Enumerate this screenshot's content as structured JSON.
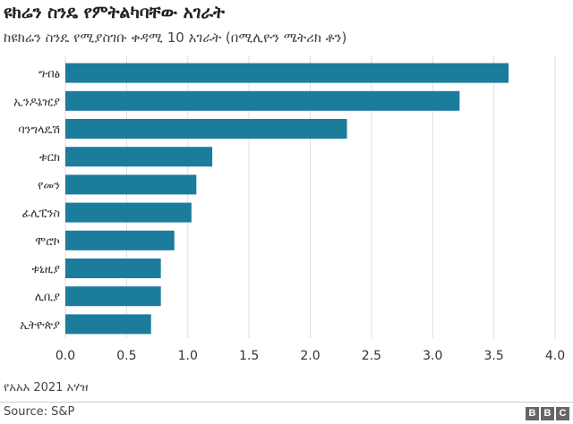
{
  "chart_data": {
    "type": "bar",
    "orientation": "horizontal",
    "title": "ዩክሬን ስንዴ የምትልካባቸው አገራት",
    "subtitle": "ከዩክሬን ስንዴ የሚያስገቡ ቀዳሚ 10 አገራት (በሚሊዮን ሜትሪክ ቶን)",
    "categories": [
      "ግብፅ",
      "ኢንዶኔዢያ",
      "ባንግላዴሽ",
      "ቱርክ",
      "የመን",
      "ፊሊፒንስ",
      "ሞሮኮ",
      "ቱኒዚያ",
      "ሊቢያ",
      "ኢትዮጵያ"
    ],
    "values": [
      3.62,
      3.22,
      2.3,
      1.2,
      1.07,
      1.03,
      0.89,
      0.78,
      0.78,
      0.7
    ],
    "xlim": [
      0,
      4.0
    ],
    "xticks": [
      "0.0",
      "0.5",
      "1.0",
      "1.5",
      "2.0",
      "2.5",
      "3.0",
      "3.5",
      "4.0"
    ],
    "grid": true,
    "bar_color": "#1c7c9c",
    "grid_color": "#dddddd"
  },
  "footer": {
    "note": "የአአአ 2021 አሃዝ",
    "source": "Source: S&P",
    "logo_letters": [
      "B",
      "B",
      "C"
    ]
  }
}
